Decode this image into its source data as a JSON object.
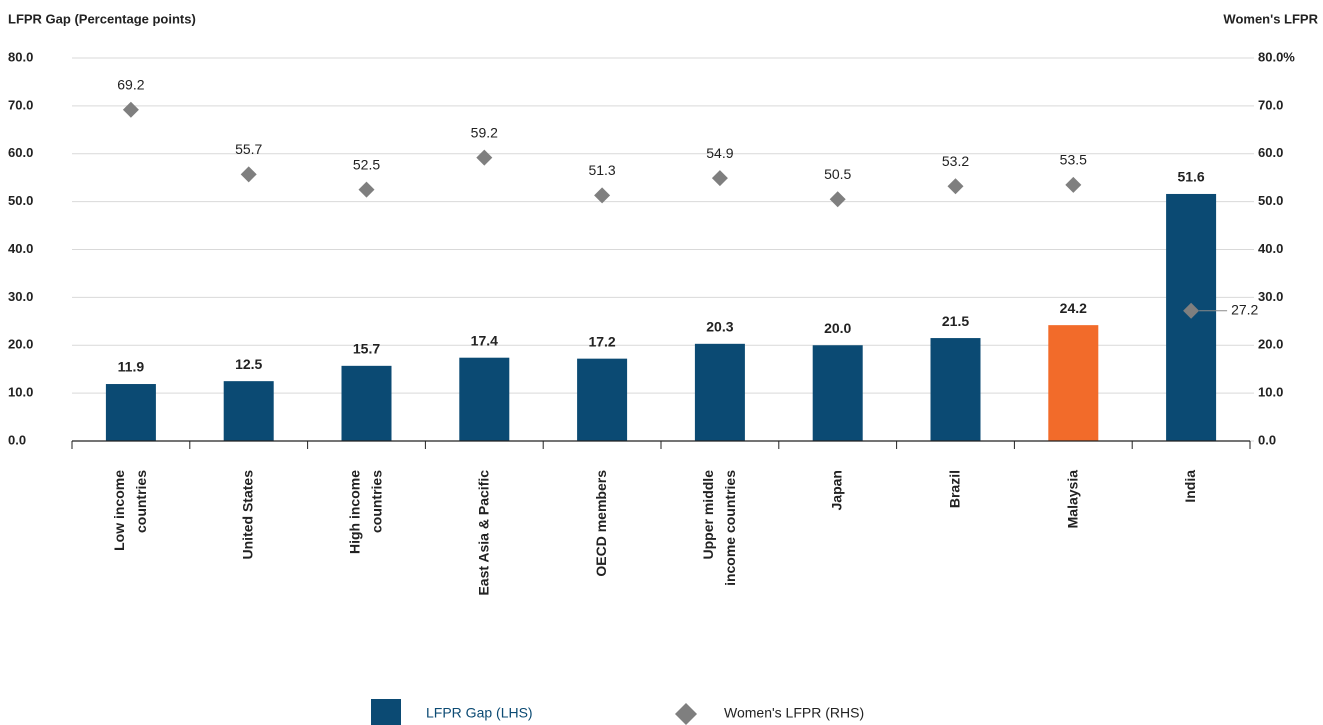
{
  "chart_data": {
    "type": "bar-scatter",
    "y_axis_label": "LFPR Gap (Percentage points)",
    "y2_axis_label": "Women's LFPR",
    "categories": [
      "Low income\ncountries",
      "United States",
      "High income\ncountries",
      "East Asia & Pacific",
      "OECD members",
      "Upper middle\nincome countries",
      "Japan",
      "Brazil",
      "Malaysia",
      "India"
    ],
    "category_label_colors": [
      "#222222",
      "#222222",
      "#222222",
      "#222222",
      "#222222",
      "#222222",
      "#222222",
      "#222222",
      "#f26b2a",
      "#222222"
    ],
    "series": [
      {
        "name": "LFPR Gap (LHS)",
        "type": "bar",
        "color": "#0b4a73",
        "colors": [
          "#0b4a73",
          "#0b4a73",
          "#0b4a73",
          "#0b4a73",
          "#0b4a73",
          "#0b4a73",
          "#0b4a73",
          "#0b4a73",
          "#f26b2a",
          "#0b4a73"
        ],
        "values": [
          11.9,
          12.5,
          15.7,
          17.4,
          17.2,
          20.3,
          20.0,
          21.5,
          24.2,
          51.6
        ],
        "value_labels": [
          "11.9",
          "12.5",
          "15.7",
          "17.4",
          "17.2",
          "20.3",
          "20.0",
          "21.5",
          "24.2",
          "51.6"
        ]
      },
      {
        "name": "Women's LFPR (RHS)",
        "type": "scatter",
        "axis": "y2",
        "color": "#7f7f7f",
        "values": [
          69.2,
          55.7,
          52.5,
          59.2,
          51.3,
          54.9,
          50.5,
          53.2,
          53.5,
          27.2
        ],
        "value_labels": [
          "69.2",
          "55.7",
          "52.5",
          "59.2",
          "51.3",
          "54.9",
          "50.5",
          "53.2",
          "53.5",
          "27.2"
        ]
      }
    ],
    "ylim": [
      0,
      80
    ],
    "yticks": [
      {
        "value": 0,
        "label": "0.0"
      },
      {
        "value": 10,
        "label": "10.0"
      },
      {
        "value": 20,
        "label": "20.0"
      },
      {
        "value": 30,
        "label": "30.0"
      },
      {
        "value": 40,
        "label": "40.0"
      },
      {
        "value": 50,
        "label": "50.0"
      },
      {
        "value": 60,
        "label": "60.0"
      },
      {
        "value": 70,
        "label": "70.0"
      },
      {
        "value": 80,
        "label": "80.0"
      }
    ],
    "y2lim": [
      0,
      80
    ],
    "y2ticks": [
      {
        "value": 0,
        "label": "0.0"
      },
      {
        "value": 10,
        "label": "10.0"
      },
      {
        "value": 20,
        "label": "20.0"
      },
      {
        "value": 30,
        "label": "30.0"
      },
      {
        "value": 40,
        "label": "40.0"
      },
      {
        "value": 50,
        "label": "50.0"
      },
      {
        "value": 60,
        "label": "60.0"
      },
      {
        "value": 70,
        "label": "70.0"
      },
      {
        "value": 80,
        "label": "80.0%"
      }
    ],
    "grid": true
  }
}
